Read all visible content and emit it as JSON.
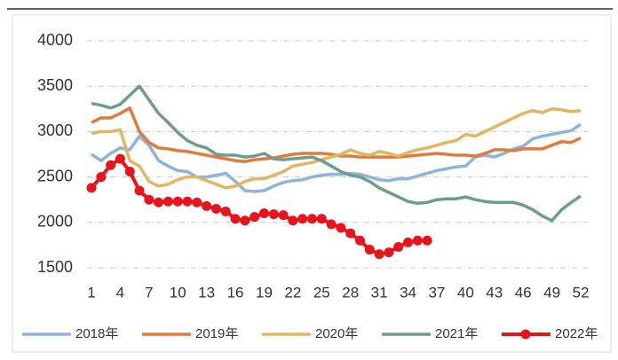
{
  "chart_data": {
    "type": "line",
    "x": [
      1,
      2,
      3,
      4,
      5,
      6,
      7,
      8,
      9,
      10,
      11,
      12,
      13,
      14,
      15,
      16,
      17,
      18,
      19,
      20,
      21,
      22,
      23,
      24,
      25,
      26,
      27,
      28,
      29,
      30,
      31,
      32,
      33,
      34,
      35,
      36,
      37,
      38,
      39,
      40,
      41,
      42,
      43,
      44,
      45,
      46,
      47,
      48,
      49,
      50,
      51,
      52
    ],
    "xlim": [
      1,
      52
    ],
    "xticks": [
      1,
      4,
      7,
      10,
      13,
      16,
      19,
      22,
      25,
      28,
      31,
      34,
      37,
      40,
      43,
      46,
      49,
      52
    ],
    "ylim": [
      1500,
      4000
    ],
    "yticks": [
      1500,
      2000,
      2500,
      3000,
      3500,
      4000
    ],
    "grid": true,
    "legend": "bottom",
    "series": [
      {
        "name": "2018年",
        "color": "#8fb4d9",
        "values": [
          2750,
          2680,
          2760,
          2820,
          2800,
          2950,
          2850,
          2680,
          2620,
          2570,
          2560,
          2500,
          2500,
          2520,
          2540,
          2450,
          2350,
          2340,
          2350,
          2400,
          2440,
          2460,
          2470,
          2500,
          2520,
          2530,
          2530,
          2540,
          2530,
          2500,
          2470,
          2460,
          2480,
          2480,
          2510,
          2540,
          2570,
          2590,
          2610,
          2620,
          2720,
          2740,
          2720,
          2760,
          2810,
          2840,
          2920,
          2950,
          2970,
          2990,
          3010,
          3080
        ]
      },
      {
        "name": "2019年",
        "color": "#e07b3c",
        "values": [
          3100,
          3150,
          3150,
          3200,
          3260,
          3000,
          2880,
          2820,
          2810,
          2790,
          2780,
          2760,
          2740,
          2720,
          2700,
          2680,
          2670,
          2690,
          2700,
          2710,
          2730,
          2750,
          2760,
          2760,
          2760,
          2750,
          2730,
          2730,
          2720,
          2720,
          2720,
          2720,
          2720,
          2730,
          2740,
          2750,
          2760,
          2750,
          2740,
          2740,
          2730,
          2760,
          2800,
          2800,
          2790,
          2810,
          2810,
          2810,
          2850,
          2890,
          2880,
          2930
        ]
      },
      {
        "name": "2020年",
        "color": "#e2b660",
        "values": [
          2980,
          3000,
          3000,
          3020,
          2680,
          2620,
          2450,
          2400,
          2420,
          2470,
          2500,
          2500,
          2460,
          2420,
          2380,
          2400,
          2450,
          2480,
          2480,
          2520,
          2560,
          2620,
          2640,
          2660,
          2690,
          2720,
          2750,
          2800,
          2760,
          2740,
          2780,
          2760,
          2730,
          2770,
          2800,
          2820,
          2850,
          2880,
          2900,
          2970,
          2950,
          3000,
          3050,
          3100,
          3150,
          3200,
          3230,
          3210,
          3250,
          3240,
          3220,
          3230
        ]
      },
      {
        "name": "2021年",
        "color": "#6e9e8a",
        "values": [
          3310,
          3290,
          3260,
          3300,
          3400,
          3500,
          3350,
          3200,
          3100,
          2990,
          2900,
          2850,
          2820,
          2750,
          2740,
          2740,
          2720,
          2730,
          2760,
          2700,
          2690,
          2700,
          2710,
          2720,
          2680,
          2620,
          2560,
          2520,
          2500,
          2450,
          2380,
          2330,
          2280,
          2230,
          2210,
          2220,
          2250,
          2260,
          2260,
          2280,
          2250,
          2230,
          2220,
          2220,
          2220,
          2190,
          2140,
          2070,
          2020,
          2140,
          2220,
          2290
        ]
      },
      {
        "name": "2022年",
        "color": "#e8141b",
        "marker": true,
        "values": [
          2380,
          2500,
          2630,
          2700,
          2560,
          2350,
          2250,
          2220,
          2230,
          2230,
          2230,
          2220,
          2180,
          2150,
          2120,
          2040,
          2020,
          2060,
          2100,
          2090,
          2080,
          2020,
          2040,
          2040,
          2040,
          1980,
          1940,
          1880,
          1800,
          1700,
          1650,
          1670,
          1730,
          1780,
          1800,
          1800,
          null,
          null,
          null,
          null,
          null,
          null,
          null,
          null,
          null,
          null,
          null,
          null,
          null,
          null,
          null,
          null
        ]
      }
    ]
  }
}
